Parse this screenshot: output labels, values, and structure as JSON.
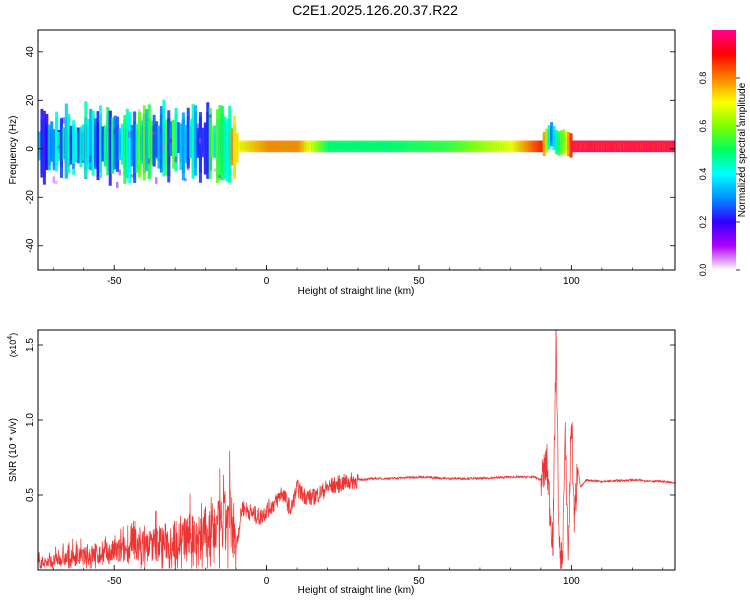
{
  "title": "C2E1.2025.126.20.37.R22",
  "chart_data": [
    {
      "type": "heatmap",
      "title": "",
      "xlabel": "Height of straight line (km)",
      "ylabel": "Frequency (Hz)",
      "xlim": [
        -75,
        134
      ],
      "ylim": [
        -50,
        49
      ],
      "x_ticks": [
        "-50",
        "0",
        "50",
        "100"
      ],
      "y_ticks": [
        "-40",
        "-20",
        "0",
        "20",
        "40"
      ],
      "colorbar": {
        "label": "Normalized spectral amplitude",
        "range": [
          0,
          1
        ],
        "ticks": [
          "0.0",
          "0.2",
          "0.4",
          "0.6",
          "0.8"
        ],
        "colors": [
          "#ffffff",
          "#b000ff",
          "#3000ff",
          "#0090ff",
          "#00ffff",
          "#00ff60",
          "#80ff00",
          "#ffff00",
          "#ff8000",
          "#ff0000",
          "#ff0090"
        ]
      },
      "ridge": {
        "x": [
          -75,
          -60,
          -45,
          -30,
          -20,
          -10,
          0,
          10,
          20,
          40,
          60,
          80,
          90,
          93,
          95,
          97,
          100,
          110,
          134
        ],
        "freq_hz": [
          1,
          2,
          1,
          3,
          2,
          1,
          1,
          1,
          1,
          1,
          1,
          1,
          1,
          6,
          2,
          3,
          1,
          1,
          1
        ],
        "peak_amplitude": [
          0.35,
          0.4,
          0.45,
          0.45,
          0.4,
          0.7,
          0.8,
          0.8,
          0.5,
          0.5,
          0.55,
          0.7,
          0.9,
          0.3,
          0.5,
          0.6,
          0.95,
          0.95,
          0.95
        ]
      }
    },
    {
      "type": "line",
      "title": "",
      "xlabel": "Height of straight line (km)",
      "ylabel": "SNR (10 * v/v)",
      "y_multiplier": "(x10",
      "y_multiplier_exp": "4",
      "xlim": [
        -75,
        134
      ],
      "ylim": [
        0,
        1.6
      ],
      "x_ticks": [
        "-50",
        "0",
        "50",
        "100"
      ],
      "y_ticks": [
        "0.5",
        "1.0",
        "1.5"
      ],
      "line_color": "#ee3333",
      "series": [
        {
          "x": [
            -75,
            -70,
            -65,
            -60,
            -55,
            -50,
            -45,
            -40,
            -35,
            -30,
            -25,
            -20,
            -15,
            -12,
            -10,
            -8,
            -5,
            -2,
            0,
            3,
            5,
            8,
            10,
            12,
            15,
            18,
            20,
            25,
            30,
            35,
            40,
            50,
            60,
            70,
            80,
            88,
            90,
            92,
            93,
            94,
            95,
            96,
            97,
            98,
            99,
            100,
            101,
            102,
            103,
            105,
            110,
            120,
            130,
            134
          ],
          "y": [
            0.05,
            0.06,
            0.08,
            0.09,
            0.1,
            0.12,
            0.14,
            0.16,
            0.18,
            0.2,
            0.22,
            0.25,
            0.28,
            0.35,
            0.15,
            0.42,
            0.38,
            0.35,
            0.4,
            0.45,
            0.52,
            0.4,
            0.55,
            0.5,
            0.48,
            0.52,
            0.55,
            0.58,
            0.6,
            0.61,
            0.61,
            0.62,
            0.61,
            0.61,
            0.62,
            0.62,
            0.6,
            0.7,
            0.4,
            0.2,
            1.58,
            0.1,
            0.05,
            0.85,
            0.1,
            1.05,
            0.3,
            0.7,
            0.55,
            0.6,
            0.59,
            0.6,
            0.59,
            0.58
          ]
        }
      ]
    }
  ]
}
